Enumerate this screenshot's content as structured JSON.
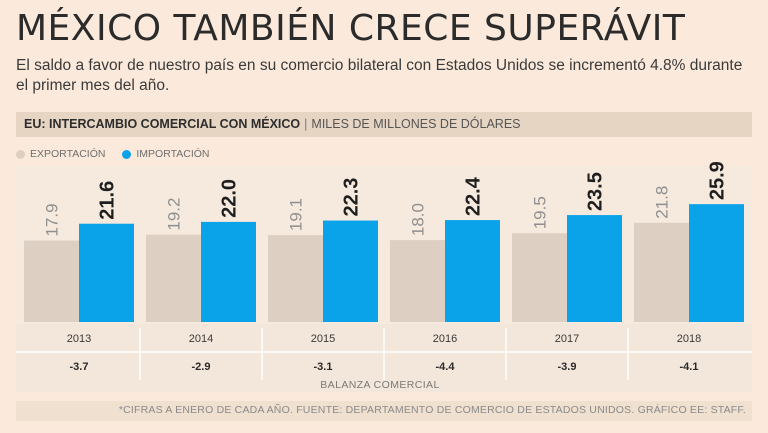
{
  "title": "MÉXICO TAMBIÉN CRECE SUPERÁVIT",
  "subtitle": "El saldo a favor de nuestro país en su comercio bilateral con Estados Unidos se incrementó 4.8% durante el primer mes del año.",
  "header": {
    "label": "EU: INTERCAMBIO COMERCIAL CON MÉXICO",
    "separator": "|",
    "units": "MILES DE MILLONES DE DÓLARES"
  },
  "legend": {
    "export_label": "EXPORTACIÓN",
    "import_label": "IMPORTACIÓN"
  },
  "colors": {
    "export": "#ddd0c2",
    "import": "#0aa3ea",
    "panel": "#f6eadf"
  },
  "chart_data": {
    "type": "bar",
    "categories": [
      "2013",
      "2014",
      "2015",
      "2016",
      "2017",
      "2018"
    ],
    "series": [
      {
        "name": "EXPORTACIÓN",
        "values": [
          17.9,
          19.2,
          19.1,
          18.0,
          19.5,
          21.8
        ]
      },
      {
        "name": "IMPORTACIÓN",
        "values": [
          21.6,
          22.0,
          22.3,
          22.4,
          23.5,
          25.9
        ]
      }
    ],
    "value_labels": {
      "export": [
        "17.9",
        "19.2",
        "19.1",
        "18.0",
        "19.5",
        "21.8"
      ],
      "import": [
        "21.6",
        "22.0",
        "22.3",
        "22.4",
        "23.5",
        "25.9"
      ]
    },
    "balance": [
      "-3.7",
      "-2.9",
      "-3.1",
      "-4.4",
      "-3.9",
      "-4.1"
    ],
    "balance_label": "BALANZA COMERCIAL",
    "ylim": [
      0,
      27
    ],
    "title": "EU: INTERCAMBIO COMERCIAL CON MÉXICO",
    "ylabel": "MILES DE MILLONES DE DÓLARES"
  },
  "footnote": "*CIFRAS A ENERO DE CADA AÑO.  FUENTE: DEPARTAMENTO DE COMERCIO DE ESTADOS UNIDOS.  GRÁFICO EE: STAFF."
}
